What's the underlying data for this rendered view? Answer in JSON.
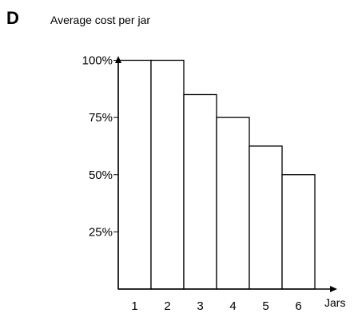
{
  "chart_data": {
    "type": "bar",
    "panel_label": "D",
    "title": "",
    "ylabel": "Average cost per jar",
    "xlabel": "Jars",
    "categories": [
      "1",
      "2",
      "3",
      "4",
      "5",
      "6"
    ],
    "values": [
      100,
      100,
      85,
      75,
      62.5,
      50
    ],
    "y_unit": "%",
    "ylim": [
      0,
      110
    ],
    "yticks": [
      {
        "value": 25,
        "label": "25%"
      },
      {
        "value": 50,
        "label": "50%"
      },
      {
        "value": 75,
        "label": "75%"
      },
      {
        "value": 100,
        "label": "100%"
      }
    ],
    "grid": false,
    "legend": "none",
    "colors": {
      "bar_fill": "#ffffff",
      "bar_stroke": "#000000",
      "axis": "#000000"
    }
  }
}
